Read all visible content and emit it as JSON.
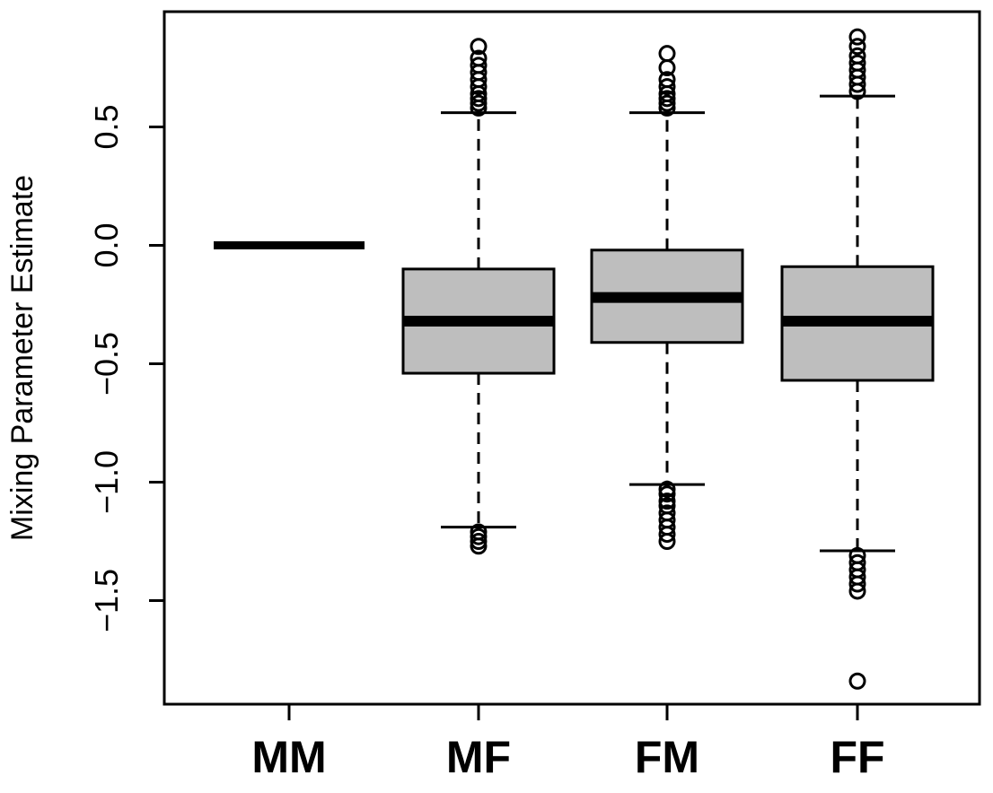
{
  "chart_data": {
    "type": "box",
    "ylabel": "Mixing Parameter Estimate",
    "xlabel": "",
    "title": "",
    "ylim": [
      -1.9,
      0.95
    ],
    "yticks": [
      -1.5,
      -1.0,
      -0.5,
      0.0,
      0.5
    ],
    "ytick_labels": [
      "−1.5",
      "−1.0",
      "−0.5",
      "0.0",
      "0.5"
    ],
    "categories": [
      "MM",
      "MF",
      "FM",
      "FF"
    ],
    "grid": false,
    "box_fill": "#bebebe",
    "boxes": [
      {
        "label": "MM",
        "q1": 0.0,
        "median": 0.0,
        "q3": 0.0,
        "whisker_low": 0.0,
        "whisker_high": 0.0,
        "outliers": []
      },
      {
        "label": "MF",
        "q1": -0.54,
        "median": -0.32,
        "q3": -0.1,
        "whisker_low": -1.19,
        "whisker_high": 0.56,
        "outliers": [
          0.58,
          0.6,
          0.62,
          0.64,
          0.67,
          0.7,
          0.73,
          0.76,
          0.79,
          0.84,
          -1.21,
          -1.23,
          -1.25,
          -1.27
        ]
      },
      {
        "label": "FM",
        "q1": -0.41,
        "median": -0.22,
        "q3": -0.02,
        "whisker_low": -1.01,
        "whisker_high": 0.56,
        "outliers": [
          0.58,
          0.6,
          0.62,
          0.64,
          0.67,
          0.7,
          0.75,
          0.81,
          -1.03,
          -1.05,
          -1.08,
          -1.1,
          -1.13,
          -1.16,
          -1.19,
          -1.22,
          -1.25
        ]
      },
      {
        "label": "FF",
        "q1": -0.57,
        "median": -0.32,
        "q3": -0.09,
        "whisker_low": -1.29,
        "whisker_high": 0.63,
        "outliers": [
          0.65,
          0.68,
          0.71,
          0.74,
          0.77,
          0.8,
          0.84,
          0.88,
          -1.31,
          -1.34,
          -1.37,
          -1.4,
          -1.43,
          -1.46,
          -1.84
        ]
      }
    ]
  }
}
